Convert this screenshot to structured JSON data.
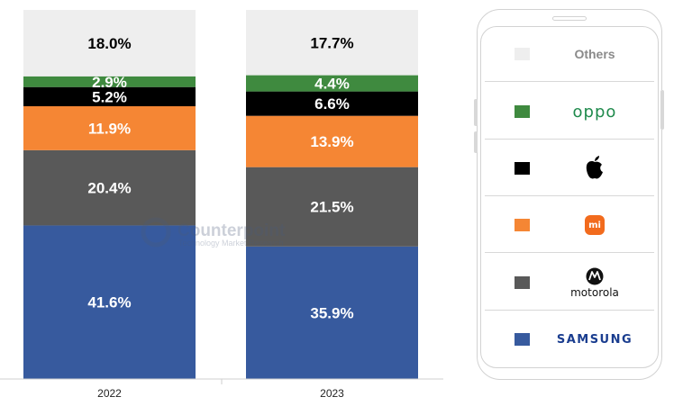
{
  "chart_data": {
    "type": "bar",
    "stacked": true,
    "percent_stacked": true,
    "categories": [
      "2022",
      "2023"
    ],
    "series": [
      {
        "name": "SAMSUNG",
        "color": "#375a9e",
        "values": [
          41.6,
          35.9
        ],
        "labels": [
          "41.6%",
          "35.9%"
        ]
      },
      {
        "name": "motorola",
        "color": "#595959",
        "values": [
          20.4,
          21.5
        ],
        "labels": [
          "20.4%",
          "21.5%"
        ]
      },
      {
        "name": "mi",
        "color": "#f58634",
        "values": [
          11.9,
          13.9
        ],
        "labels": [
          "11.9%",
          "13.9%"
        ]
      },
      {
        "name": "apple",
        "color": "#000000",
        "values": [
          5.2,
          6.6
        ],
        "labels": [
          "5.2%",
          "6.6%"
        ]
      },
      {
        "name": "oppo",
        "color": "#3f8a3f",
        "values": [
          2.9,
          4.4
        ],
        "labels": [
          "2.9%",
          "4.4%"
        ]
      },
      {
        "name": "Others",
        "color": "#eeeeee",
        "values": [
          18.0,
          17.7
        ],
        "labels": [
          "18.0%",
          "17.7%"
        ]
      }
    ],
    "ylim": [
      0,
      100
    ],
    "grid": false,
    "legend": "right"
  },
  "watermark": {
    "name": "Counterpoint",
    "tagline": "Technology Market Research"
  },
  "legend": {
    "items": [
      {
        "key": "Others",
        "text": "Others",
        "color": "#eeeeee"
      },
      {
        "key": "oppo",
        "text": "oppo",
        "color": "#3f8a3f"
      },
      {
        "key": "apple",
        "icon": "apple-logo",
        "color": "#000000"
      },
      {
        "key": "mi",
        "text": "mi",
        "color": "#f58634"
      },
      {
        "key": "motorola",
        "text": "motorola",
        "icon": "motorola-logo",
        "color": "#595959"
      },
      {
        "key": "SAMSUNG",
        "text": "SAMSUNG",
        "color": "#375a9e"
      }
    ]
  }
}
